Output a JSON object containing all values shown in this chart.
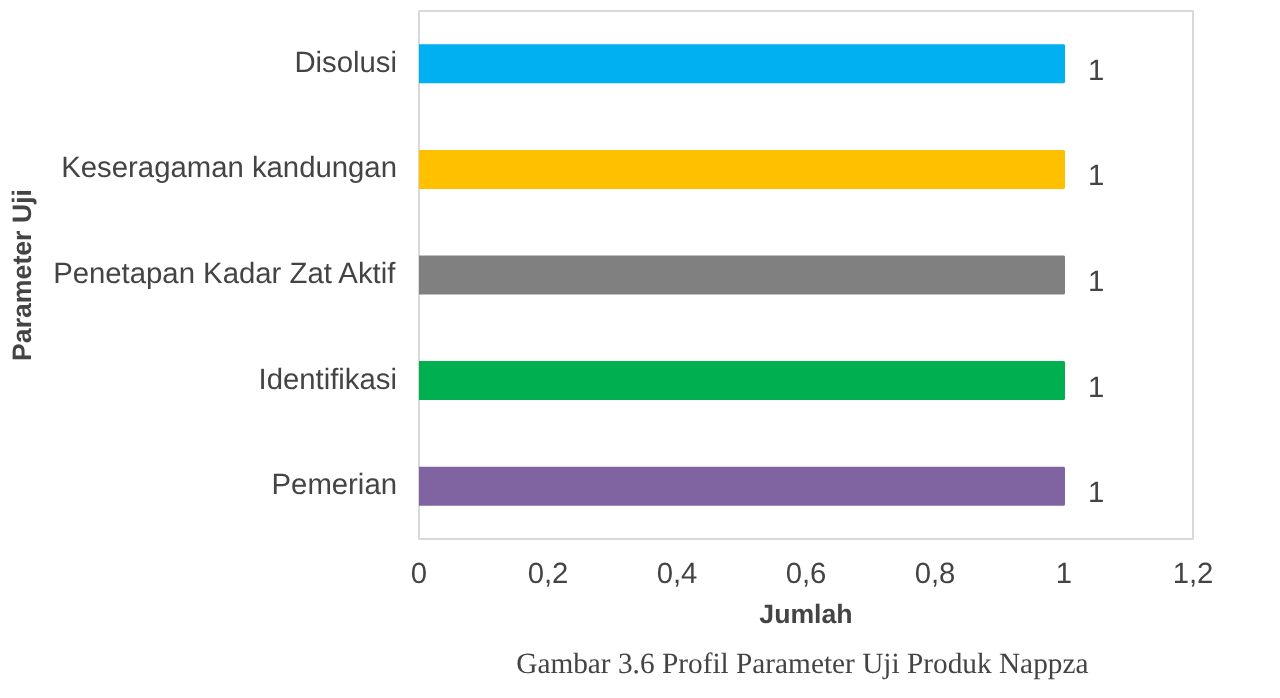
{
  "chart_data": {
    "type": "bar",
    "orientation": "horizontal",
    "xlabel": "Jumlah",
    "ylabel": "Parameter Uji",
    "categories": [
      "Disolusi",
      "Keseragaman kandungan",
      "Penetapan Kadar Zat Aktif",
      "Identifikasi",
      "Pemerian"
    ],
    "values": [
      1,
      1,
      1,
      1,
      1
    ],
    "colors": [
      "#00b0f0",
      "#ffc000",
      "#808080",
      "#00b050",
      "#8064a2"
    ],
    "xlim": [
      0,
      1.2
    ],
    "xticks": [
      0,
      {
        "value": 0.2,
        "label": "0,2"
      },
      {
        "value": 0.4,
        "label": "0,4"
      },
      {
        "value": 0.6,
        "label": "0,6"
      },
      {
        "value": 0.8,
        "label": "0,8"
      },
      1,
      {
        "value": 1.2,
        "label": "1,2"
      }
    ],
    "data_labels": true,
    "grid": false,
    "annotations": [
      "Gambar 3.6  Profil Parameter Uji Produk Nappza"
    ]
  }
}
